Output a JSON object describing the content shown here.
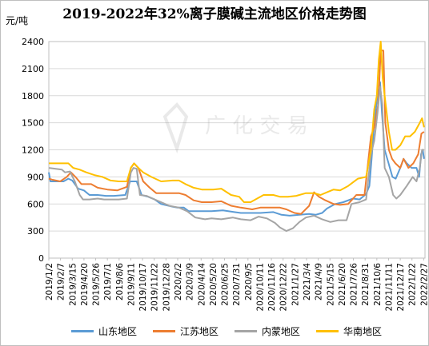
{
  "chart_data": {
    "type": "line",
    "title": "2019-2022年32%离子膜碱主流地区价格走势图",
    "ylabel": "元/吨",
    "ylim": [
      0,
      2400
    ],
    "yticks": [
      0,
      300,
      600,
      900,
      1200,
      1500,
      1800,
      2100,
      2400
    ],
    "grid": true,
    "legend_position": "bottom",
    "x_labels": [
      "2019/1/2",
      "2019/2/7",
      "2019/3/15",
      "2019/4/20",
      "2019/5/26",
      "2019/7/1",
      "2019/8/6",
      "2019/9/11",
      "2019/10/17",
      "2019/11/22",
      "2019/12/28",
      "2020/2/2",
      "2020/3/9",
      "2020/4/14",
      "2020/5/20",
      "2020/6/25",
      "2020/7/31",
      "2020/9/5",
      "2020/10/11",
      "2020/11/16",
      "2020/12/22",
      "2021/1/27",
      "2021/3/4",
      "2021/4/9",
      "2021/5/15",
      "2021/6/20",
      "2021/7/26",
      "2021/8/31",
      "2021/10/6",
      "2021/11/11",
      "2021/12/17",
      "2022/1/22",
      "2022/2/27"
    ],
    "x_label_days": [
      0,
      36,
      72,
      108,
      144,
      180,
      216,
      252,
      288,
      324,
      360,
      396,
      432,
      468,
      504,
      540,
      576,
      612,
      648,
      684,
      720,
      756,
      792,
      828,
      864,
      900,
      936,
      972,
      1008,
      1044,
      1080,
      1116,
      1152
    ],
    "x_range_days": [
      0,
      1156
    ],
    "series": [
      {
        "name": "山东地区",
        "color": "#5b9bd5",
        "points": [
          [
            0,
            950
          ],
          [
            5,
            850
          ],
          [
            45,
            850
          ],
          [
            60,
            880
          ],
          [
            72,
            860
          ],
          [
            90,
            770
          ],
          [
            108,
            750
          ],
          [
            125,
            700
          ],
          [
            150,
            700
          ],
          [
            175,
            690
          ],
          [
            200,
            690
          ],
          [
            235,
            700
          ],
          [
            250,
            850
          ],
          [
            270,
            850
          ],
          [
            285,
            700
          ],
          [
            305,
            680
          ],
          [
            325,
            650
          ],
          [
            345,
            600
          ],
          [
            380,
            570
          ],
          [
            395,
            560
          ],
          [
            415,
            560
          ],
          [
            430,
            520
          ],
          [
            470,
            520
          ],
          [
            500,
            520
          ],
          [
            535,
            530
          ],
          [
            570,
            510
          ],
          [
            590,
            500
          ],
          [
            620,
            500
          ],
          [
            650,
            500
          ],
          [
            690,
            510
          ],
          [
            715,
            480
          ],
          [
            740,
            470
          ],
          [
            770,
            480
          ],
          [
            800,
            490
          ],
          [
            820,
            480
          ],
          [
            840,
            500
          ],
          [
            855,
            550
          ],
          [
            880,
            600
          ],
          [
            905,
            620
          ],
          [
            935,
            660
          ],
          [
            955,
            650
          ],
          [
            975,
            710
          ],
          [
            985,
            800
          ],
          [
            992,
            1100
          ],
          [
            1000,
            1500
          ],
          [
            1010,
            1800
          ],
          [
            1018,
            1950
          ],
          [
            1024,
            1600
          ],
          [
            1032,
            1200
          ],
          [
            1044,
            1050
          ],
          [
            1056,
            900
          ],
          [
            1066,
            880
          ],
          [
            1080,
            1000
          ],
          [
            1090,
            1100
          ],
          [
            1100,
            1050
          ],
          [
            1115,
            1000
          ],
          [
            1130,
            1000
          ],
          [
            1138,
            900
          ],
          [
            1144,
            1150
          ],
          [
            1149,
            1200
          ],
          [
            1153,
            1100
          ]
        ]
      },
      {
        "name": "江苏地区",
        "color": "#ed7d31",
        "points": [
          [
            0,
            880
          ],
          [
            10,
            870
          ],
          [
            35,
            850
          ],
          [
            55,
            900
          ],
          [
            68,
            950
          ],
          [
            82,
            900
          ],
          [
            100,
            820
          ],
          [
            130,
            820
          ],
          [
            150,
            780
          ],
          [
            180,
            760
          ],
          [
            210,
            750
          ],
          [
            240,
            790
          ],
          [
            252,
            1000
          ],
          [
            262,
            1050
          ],
          [
            275,
            1000
          ],
          [
            290,
            850
          ],
          [
            310,
            780
          ],
          [
            330,
            720
          ],
          [
            360,
            720
          ],
          [
            400,
            720
          ],
          [
            420,
            700
          ],
          [
            445,
            640
          ],
          [
            470,
            620
          ],
          [
            500,
            620
          ],
          [
            530,
            630
          ],
          [
            560,
            580
          ],
          [
            590,
            560
          ],
          [
            625,
            540
          ],
          [
            650,
            560
          ],
          [
            680,
            560
          ],
          [
            710,
            560
          ],
          [
            730,
            540
          ],
          [
            755,
            500
          ],
          [
            775,
            490
          ],
          [
            800,
            580
          ],
          [
            815,
            730
          ],
          [
            830,
            680
          ],
          [
            850,
            640
          ],
          [
            875,
            600
          ],
          [
            895,
            590
          ],
          [
            920,
            600
          ],
          [
            945,
            700
          ],
          [
            970,
            700
          ],
          [
            990,
            1350
          ],
          [
            1000,
            1450
          ],
          [
            1012,
            1700
          ],
          [
            1020,
            2300
          ],
          [
            1028,
            2300
          ],
          [
            1034,
            1500
          ],
          [
            1045,
            1200
          ],
          [
            1055,
            1100
          ],
          [
            1065,
            1050
          ],
          [
            1080,
            1000
          ],
          [
            1090,
            1100
          ],
          [
            1105,
            1000
          ],
          [
            1120,
            1050
          ],
          [
            1135,
            1150
          ],
          [
            1145,
            1380
          ],
          [
            1153,
            1400
          ]
        ]
      },
      {
        "name": "内蒙地区",
        "color": "#a5a5a5",
        "points": [
          [
            0,
            1000
          ],
          [
            40,
            980
          ],
          [
            50,
            950
          ],
          [
            65,
            960
          ],
          [
            80,
            850
          ],
          [
            95,
            700
          ],
          [
            105,
            650
          ],
          [
            125,
            650
          ],
          [
            150,
            660
          ],
          [
            170,
            650
          ],
          [
            190,
            650
          ],
          [
            215,
            650
          ],
          [
            240,
            660
          ],
          [
            252,
            950
          ],
          [
            260,
            1000
          ],
          [
            270,
            990
          ],
          [
            280,
            700
          ],
          [
            300,
            690
          ],
          [
            325,
            650
          ],
          [
            345,
            620
          ],
          [
            370,
            580
          ],
          [
            400,
            560
          ],
          [
            425,
            520
          ],
          [
            450,
            450
          ],
          [
            480,
            430
          ],
          [
            500,
            440
          ],
          [
            530,
            430
          ],
          [
            565,
            450
          ],
          [
            590,
            430
          ],
          [
            620,
            420
          ],
          [
            645,
            460
          ],
          [
            670,
            440
          ],
          [
            695,
            390
          ],
          [
            710,
            340
          ],
          [
            730,
            300
          ],
          [
            750,
            330
          ],
          [
            770,
            400
          ],
          [
            790,
            450
          ],
          [
            815,
            470
          ],
          [
            840,
            430
          ],
          [
            865,
            400
          ],
          [
            890,
            420
          ],
          [
            915,
            420
          ],
          [
            930,
            600
          ],
          [
            955,
            620
          ],
          [
            975,
            650
          ],
          [
            990,
            1150
          ],
          [
            1000,
            1300
          ],
          [
            1010,
            1600
          ],
          [
            1018,
            1900
          ],
          [
            1025,
            1700
          ],
          [
            1032,
            1000
          ],
          [
            1045,
            900
          ],
          [
            1058,
            700
          ],
          [
            1068,
            660
          ],
          [
            1080,
            700
          ],
          [
            1100,
            800
          ],
          [
            1118,
            900
          ],
          [
            1130,
            850
          ],
          [
            1140,
            1000
          ],
          [
            1147,
            1200
          ],
          [
            1153,
            1200
          ]
        ]
      },
      {
        "name": "华南地区",
        "color": "#ffc000",
        "points": [
          [
            0,
            1050
          ],
          [
            60,
            1050
          ],
          [
            75,
            1000
          ],
          [
            95,
            980
          ],
          [
            115,
            950
          ],
          [
            140,
            920
          ],
          [
            165,
            900
          ],
          [
            190,
            860
          ],
          [
            215,
            850
          ],
          [
            240,
            850
          ],
          [
            252,
            1000
          ],
          [
            262,
            1050
          ],
          [
            275,
            1000
          ],
          [
            290,
            950
          ],
          [
            315,
            900
          ],
          [
            345,
            850
          ],
          [
            380,
            860
          ],
          [
            400,
            860
          ],
          [
            420,
            820
          ],
          [
            445,
            780
          ],
          [
            470,
            760
          ],
          [
            505,
            760
          ],
          [
            530,
            770
          ],
          [
            560,
            700
          ],
          [
            585,
            680
          ],
          [
            600,
            620
          ],
          [
            620,
            620
          ],
          [
            640,
            660
          ],
          [
            660,
            700
          ],
          [
            690,
            700
          ],
          [
            710,
            680
          ],
          [
            735,
            680
          ],
          [
            760,
            690
          ],
          [
            790,
            720
          ],
          [
            815,
            720
          ],
          [
            835,
            700
          ],
          [
            855,
            730
          ],
          [
            875,
            760
          ],
          [
            895,
            750
          ],
          [
            920,
            800
          ],
          [
            950,
            880
          ],
          [
            975,
            900
          ],
          [
            990,
            1200
          ],
          [
            1000,
            1650
          ],
          [
            1008,
            1800
          ],
          [
            1014,
            2200
          ],
          [
            1020,
            2400
          ],
          [
            1026,
            2000
          ],
          [
            1032,
            1800
          ],
          [
            1045,
            1400
          ],
          [
            1055,
            1200
          ],
          [
            1065,
            1200
          ],
          [
            1080,
            1250
          ],
          [
            1095,
            1350
          ],
          [
            1110,
            1350
          ],
          [
            1125,
            1400
          ],
          [
            1140,
            1500
          ],
          [
            1147,
            1550
          ],
          [
            1153,
            1450
          ]
        ]
      }
    ]
  },
  "watermark": "广 化 交 易"
}
